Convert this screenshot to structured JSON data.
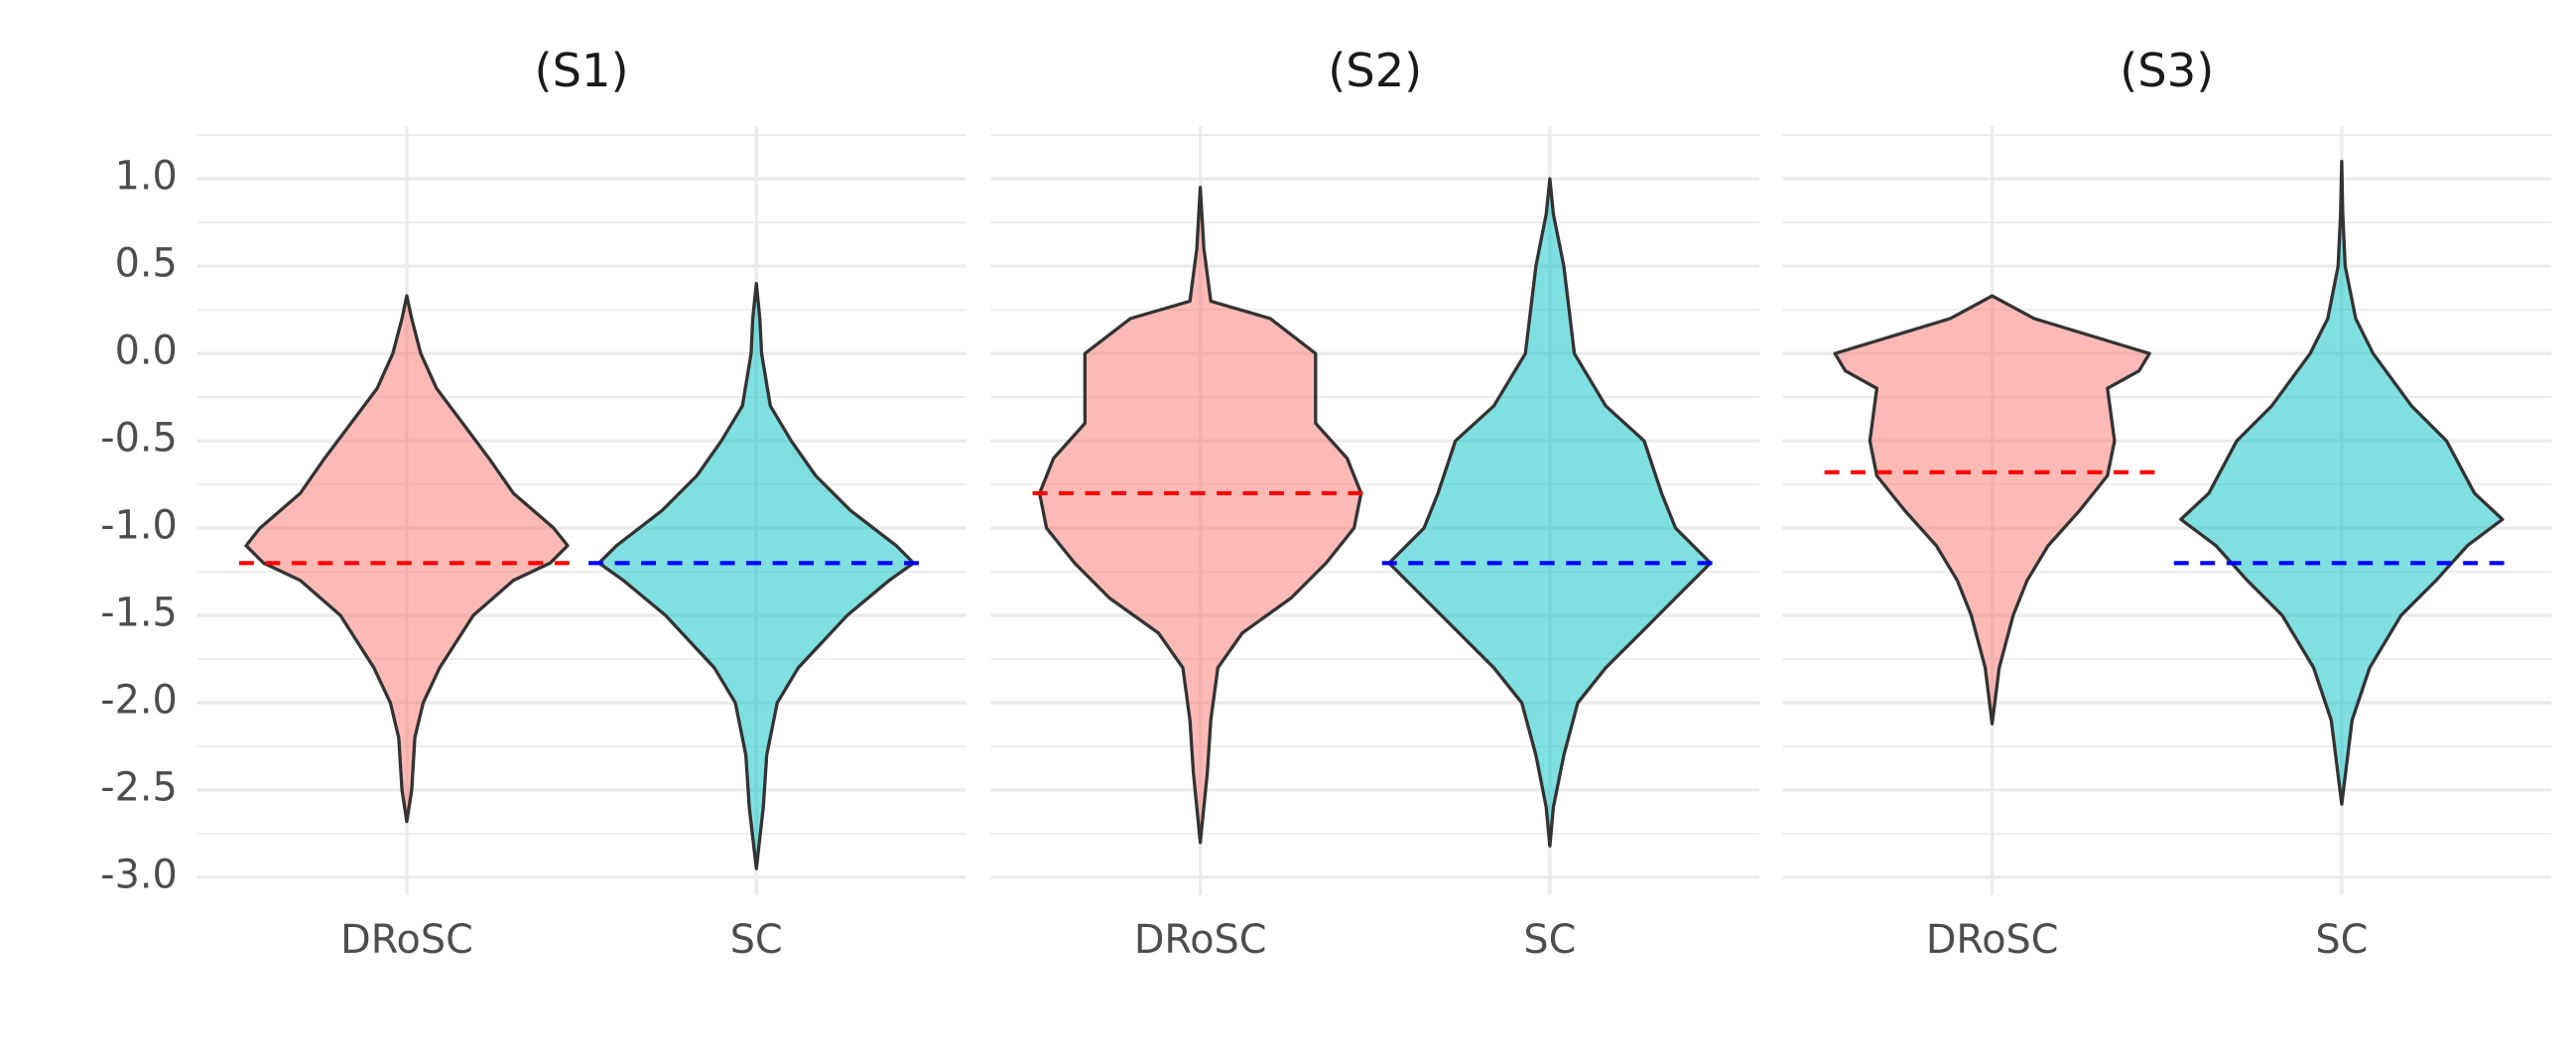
{
  "chart_data": [
    {
      "type": "violin",
      "title": "(S1)",
      "categories": [
        "DRoSC",
        "SC"
      ],
      "violins": [
        {
          "color": "#f8766d",
          "y": [
            0.33,
            0.2,
            0.0,
            -0.2,
            -0.4,
            -0.6,
            -0.8,
            -1.0,
            -1.1,
            -1.2,
            -1.3,
            -1.5,
            -1.8,
            -2.0,
            -2.2,
            -2.5,
            -2.68
          ],
          "width": [
            0,
            0.014,
            0.04,
            0.085,
            0.16,
            0.235,
            0.305,
            0.42,
            0.46,
            0.41,
            0.305,
            0.19,
            0.094,
            0.047,
            0.023,
            0.014,
            0
          ]
        },
        {
          "color": "#00bfc4",
          "y": [
            0.4,
            0.2,
            0.0,
            -0.3,
            -0.5,
            -0.7,
            -0.9,
            -1.1,
            -1.2,
            -1.3,
            -1.5,
            -1.8,
            -2.0,
            -2.3,
            -2.6,
            -2.95
          ],
          "width": [
            0,
            0.01,
            0.015,
            0.04,
            0.1,
            0.17,
            0.27,
            0.4,
            0.45,
            0.38,
            0.26,
            0.12,
            0.06,
            0.03,
            0.02,
            0
          ]
        }
      ],
      "reference_lines": [
        {
          "value": -1.2,
          "color": "#ff0000"
        },
        {
          "value": -1.2,
          "color": "#0000ff"
        }
      ],
      "ylim": [
        -3.1,
        1.3
      ],
      "yticks": [
        {
          "value": -3.0,
          "label": "-3.0"
        },
        {
          "value": -2.5,
          "label": "-2.5"
        },
        {
          "value": -2.0,
          "label": "-2.0"
        },
        {
          "value": -1.5,
          "label": "-1.5"
        },
        {
          "value": -1.0,
          "label": "-1.0"
        },
        {
          "value": -0.5,
          "label": "-0.5"
        },
        {
          "value": 0.0,
          "label": "0.0"
        },
        {
          "value": 0.5,
          "label": "0.5"
        },
        {
          "value": 1.0,
          "label": "1.0"
        }
      ],
      "minor_yticks": [
        -2.75,
        -2.25,
        -1.75,
        -1.25,
        -0.75,
        -0.25,
        0.25,
        0.75,
        1.25
      ]
    },
    {
      "type": "violin",
      "title": "(S2)",
      "categories": [
        "DRoSC",
        "SC"
      ],
      "violins": [
        {
          "color": "#f8766d",
          "y": [
            0.95,
            0.6,
            0.3,
            0.2,
            0.0,
            -0.2,
            -0.4,
            -0.6,
            -0.8,
            -1.0,
            -1.2,
            -1.4,
            -1.6,
            -1.8,
            -2.1,
            -2.4,
            -2.8
          ],
          "width": [
            0,
            0.01,
            0.03,
            0.2,
            0.33,
            0.33,
            0.33,
            0.42,
            0.46,
            0.44,
            0.36,
            0.26,
            0.12,
            0.05,
            0.03,
            0.02,
            0
          ]
        },
        {
          "color": "#00bfc4",
          "y": [
            1.0,
            0.8,
            0.5,
            0.0,
            -0.3,
            -0.5,
            -0.8,
            -1.0,
            -1.2,
            -1.4,
            -1.6,
            -1.8,
            -2.0,
            -2.3,
            -2.6,
            -2.82
          ],
          "width": [
            0,
            0.01,
            0.04,
            0.07,
            0.16,
            0.27,
            0.32,
            0.36,
            0.46,
            0.36,
            0.26,
            0.16,
            0.08,
            0.04,
            0.01,
            0
          ]
        }
      ],
      "reference_lines": [
        {
          "value": -0.8,
          "color": "#ff0000"
        },
        {
          "value": -1.2,
          "color": "#0000ff"
        }
      ],
      "ylim": [
        -3.1,
        1.3
      ]
    },
    {
      "type": "violin",
      "title": "(S3)",
      "categories": [
        "DRoSC",
        "SC"
      ],
      "violins": [
        {
          "color": "#f8766d",
          "y": [
            0.33,
            0.2,
            0.0,
            -0.1,
            -0.2,
            -0.5,
            -0.7,
            -0.9,
            -1.1,
            -1.3,
            -1.5,
            -1.8,
            -2.12
          ],
          "width": [
            0,
            0.12,
            0.45,
            0.42,
            0.33,
            0.35,
            0.33,
            0.25,
            0.16,
            0.1,
            0.06,
            0.02,
            0
          ]
        },
        {
          "color": "#00bfc4",
          "y": [
            1.1,
            0.8,
            0.5,
            0.2,
            0.0,
            -0.3,
            -0.5,
            -0.8,
            -0.95,
            -1.1,
            -1.3,
            -1.5,
            -1.8,
            -2.1,
            -2.58
          ],
          "width": [
            0,
            0.003,
            0.01,
            0.04,
            0.09,
            0.2,
            0.3,
            0.38,
            0.46,
            0.36,
            0.27,
            0.17,
            0.08,
            0.03,
            0
          ]
        }
      ],
      "reference_lines": [
        {
          "value": -0.68,
          "color": "#ff0000"
        },
        {
          "value": -1.2,
          "color": "#0000ff"
        }
      ],
      "ylim": [
        -3.1,
        1.3
      ]
    }
  ]
}
